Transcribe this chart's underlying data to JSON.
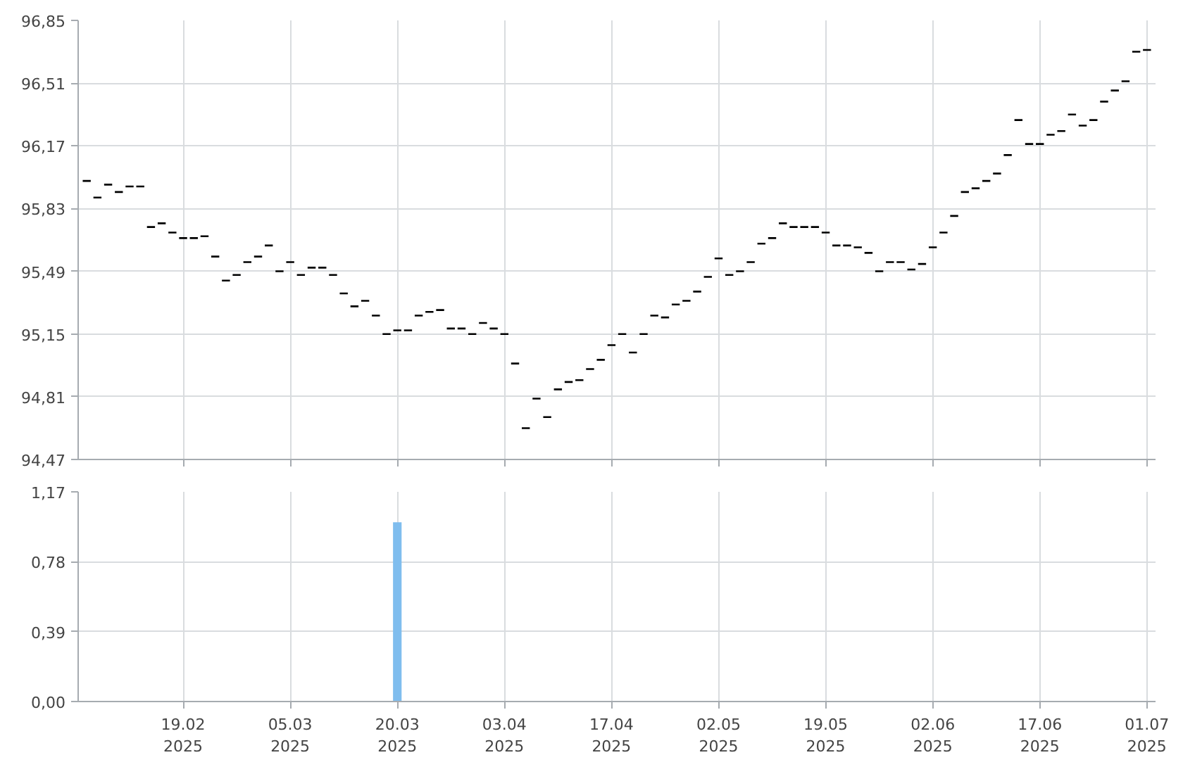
{
  "chart_data": [
    {
      "type": "candlestick",
      "color": "#000000",
      "grid": true,
      "tick_labels": "y",
      "categories": [
        null,
        null,
        null,
        null,
        null,
        null,
        null,
        null,
        null,
        null,
        null,
        null,
        null,
        null,
        null,
        null,
        null,
        null,
        null,
        null,
        null,
        null,
        null,
        null,
        null,
        null,
        null,
        null,
        null,
        null,
        null,
        null,
        null,
        null,
        null,
        null,
        null,
        null,
        null,
        null,
        null,
        null,
        null,
        null,
        null,
        null,
        null,
        null,
        null,
        null,
        null,
        null,
        null,
        null,
        null,
        null,
        null,
        null,
        null,
        null,
        null,
        null,
        null,
        null,
        null,
        null,
        null,
        null,
        null,
        null,
        null,
        null,
        null,
        null,
        null,
        null,
        null,
        null,
        null,
        null,
        null,
        null,
        null,
        null,
        null,
        null,
        null,
        null,
        null,
        null,
        null,
        null,
        null,
        null,
        null,
        null,
        null,
        null,
        null,
        null
      ],
      "ohlc": [
        [
          95.98,
          95.98,
          95.98,
          95.98
        ],
        [
          95.89,
          95.89,
          95.89,
          95.89
        ],
        [
          95.96,
          95.96,
          95.96,
          95.96
        ],
        [
          95.92,
          95.92,
          95.92,
          95.92
        ],
        [
          95.95,
          95.95,
          95.95,
          95.95
        ],
        [
          95.95,
          95.95,
          95.95,
          95.95
        ],
        [
          95.73,
          95.73,
          95.73,
          95.73
        ],
        [
          95.75,
          95.75,
          95.75,
          95.75
        ],
        [
          95.7,
          95.7,
          95.7,
          95.7
        ],
        [
          95.67,
          95.67,
          95.67,
          95.67
        ],
        [
          95.67,
          95.67,
          95.67,
          95.67
        ],
        [
          95.68,
          95.68,
          95.68,
          95.68
        ],
        [
          95.57,
          95.57,
          95.57,
          95.57
        ],
        [
          95.44,
          95.44,
          95.44,
          95.44
        ],
        [
          95.47,
          95.47,
          95.47,
          95.47
        ],
        [
          95.54,
          95.54,
          95.54,
          95.54
        ],
        [
          95.57,
          95.57,
          95.57,
          95.57
        ],
        [
          95.63,
          95.63,
          95.63,
          95.63
        ],
        [
          95.49,
          95.49,
          95.49,
          95.49
        ],
        [
          95.54,
          95.54,
          95.54,
          95.54
        ],
        [
          95.47,
          95.47,
          95.47,
          95.47
        ],
        [
          95.51,
          95.51,
          95.51,
          95.51
        ],
        [
          95.51,
          95.51,
          95.51,
          95.51
        ],
        [
          95.47,
          95.47,
          95.47,
          95.47
        ],
        [
          95.37,
          95.37,
          95.37,
          95.37
        ],
        [
          95.3,
          95.3,
          95.3,
          95.3
        ],
        [
          95.33,
          95.33,
          95.33,
          95.33
        ],
        [
          95.25,
          95.25,
          95.25,
          95.25
        ],
        [
          95.15,
          95.15,
          95.15,
          95.15
        ],
        [
          95.17,
          95.17,
          95.17,
          95.17
        ],
        [
          95.17,
          95.17,
          95.17,
          95.17
        ],
        [
          95.25,
          95.25,
          95.25,
          95.25
        ],
        [
          95.27,
          95.27,
          95.27,
          95.27
        ],
        [
          95.28,
          95.28,
          95.28,
          95.28
        ],
        [
          95.18,
          95.18,
          95.18,
          95.18
        ],
        [
          95.18,
          95.18,
          95.18,
          95.18
        ],
        [
          95.15,
          95.15,
          95.15,
          95.15
        ],
        [
          95.21,
          95.21,
          95.21,
          95.21
        ],
        [
          95.18,
          95.18,
          95.18,
          95.18
        ],
        [
          95.15,
          95.15,
          95.15,
          95.15
        ],
        [
          94.99,
          94.99,
          94.99,
          94.99
        ],
        [
          94.64,
          94.64,
          94.64,
          94.64
        ],
        [
          94.8,
          94.8,
          94.8,
          94.8
        ],
        [
          94.7,
          94.7,
          94.7,
          94.7
        ],
        [
          94.85,
          94.85,
          94.85,
          94.85
        ],
        [
          94.89,
          94.89,
          94.89,
          94.89
        ],
        [
          94.9,
          94.9,
          94.9,
          94.9
        ],
        [
          94.96,
          94.96,
          94.96,
          94.96
        ],
        [
          95.01,
          95.01,
          95.01,
          95.01
        ],
        [
          95.09,
          95.09,
          95.09,
          95.09
        ],
        [
          95.15,
          95.15,
          95.15,
          95.15
        ],
        [
          95.05,
          95.05,
          95.05,
          95.05
        ],
        [
          95.15,
          95.15,
          95.15,
          95.15
        ],
        [
          95.25,
          95.25,
          95.25,
          95.25
        ],
        [
          95.24,
          95.24,
          95.24,
          95.24
        ],
        [
          95.31,
          95.31,
          95.31,
          95.31
        ],
        [
          95.33,
          95.33,
          95.33,
          95.33
        ],
        [
          95.38,
          95.38,
          95.38,
          95.38
        ],
        [
          95.46,
          95.46,
          95.46,
          95.46
        ],
        [
          95.56,
          95.56,
          95.56,
          95.56
        ],
        [
          95.47,
          95.47,
          95.47,
          95.47
        ],
        [
          95.49,
          95.49,
          95.49,
          95.49
        ],
        [
          95.54,
          95.54,
          95.54,
          95.54
        ],
        [
          95.64,
          95.64,
          95.64,
          95.64
        ],
        [
          95.67,
          95.67,
          95.67,
          95.67
        ],
        [
          95.75,
          95.75,
          95.75,
          95.75
        ],
        [
          95.73,
          95.73,
          95.73,
          95.73
        ],
        [
          95.73,
          95.73,
          95.73,
          95.73
        ],
        [
          95.73,
          95.73,
          95.73,
          95.73
        ],
        [
          95.7,
          95.7,
          95.7,
          95.7
        ],
        [
          95.63,
          95.63,
          95.63,
          95.63
        ],
        [
          95.63,
          95.63,
          95.63,
          95.63
        ],
        [
          95.62,
          95.62,
          95.62,
          95.62
        ],
        [
          95.59,
          95.59,
          95.59,
          95.59
        ],
        [
          95.49,
          95.49,
          95.49,
          95.49
        ],
        [
          95.54,
          95.54,
          95.54,
          95.54
        ],
        [
          95.54,
          95.54,
          95.54,
          95.54
        ],
        [
          95.5,
          95.5,
          95.5,
          95.5
        ],
        [
          95.53,
          95.53,
          95.53,
          95.53
        ],
        [
          95.62,
          95.62,
          95.62,
          95.62
        ],
        [
          95.7,
          95.7,
          95.7,
          95.7
        ],
        [
          95.79,
          95.79,
          95.79,
          95.79
        ],
        [
          95.92,
          95.92,
          95.92,
          95.92
        ],
        [
          95.94,
          95.94,
          95.94,
          95.94
        ],
        [
          95.98,
          95.98,
          95.98,
          95.98
        ],
        [
          96.02,
          96.02,
          96.02,
          96.02
        ],
        [
          96.12,
          96.12,
          96.12,
          96.12
        ],
        [
          96.31,
          96.31,
          96.31,
          96.31
        ],
        [
          96.18,
          96.18,
          96.18,
          96.18
        ],
        [
          96.18,
          96.18,
          96.18,
          96.18
        ],
        [
          96.23,
          96.23,
          96.23,
          96.23
        ],
        [
          96.25,
          96.25,
          96.25,
          96.25
        ],
        [
          96.34,
          96.34,
          96.34,
          96.34
        ],
        [
          96.28,
          96.28,
          96.28,
          96.28
        ],
        [
          96.31,
          96.31,
          96.31,
          96.31
        ],
        [
          96.41,
          96.41,
          96.41,
          96.41
        ],
        [
          96.47,
          96.47,
          96.47,
          96.47
        ],
        [
          96.52,
          96.52,
          96.52,
          96.52
        ],
        [
          96.68,
          96.68,
          96.68,
          96.68
        ],
        [
          96.69,
          96.69,
          96.69,
          96.69
        ]
      ],
      "ylim": [
        94.47,
        96.85
      ],
      "yticks": [
        {
          "value": 94.47,
          "label": "94,47"
        },
        {
          "value": 94.81,
          "label": "94,81"
        },
        {
          "value": 95.15,
          "label": "95,15"
        },
        {
          "value": 95.49,
          "label": "95,49"
        },
        {
          "value": 95.83,
          "label": "95,83"
        },
        {
          "value": 96.17,
          "label": "96,17"
        },
        {
          "value": 96.51,
          "label": "96,51"
        },
        {
          "value": 96.85,
          "label": "96,85"
        }
      ]
    },
    {
      "type": "bar",
      "color": "#7fbdee",
      "grid": true,
      "categories": [
        null,
        null,
        null,
        null,
        null,
        null,
        null,
        null,
        null,
        "19.02\n2025",
        null,
        null,
        null,
        null,
        null,
        null,
        null,
        null,
        null,
        "05.03\n2025",
        null,
        null,
        null,
        null,
        null,
        null,
        null,
        null,
        null,
        "20.03\n2025",
        null,
        null,
        null,
        null,
        null,
        null,
        null,
        null,
        null,
        "03.04\n2025",
        null,
        null,
        null,
        null,
        null,
        null,
        null,
        null,
        null,
        "17.04\n2025",
        null,
        null,
        null,
        null,
        null,
        null,
        null,
        null,
        null,
        "02.05\n2025",
        null,
        null,
        null,
        null,
        null,
        null,
        null,
        null,
        null,
        "19.05\n2025",
        null,
        null,
        null,
        null,
        null,
        null,
        null,
        null,
        null,
        "02.06\n2025",
        null,
        null,
        null,
        null,
        null,
        null,
        null,
        null,
        null,
        "17.06\n2025",
        null,
        null,
        null,
        null,
        null,
        null,
        null,
        null,
        null,
        "01.07\n2025"
      ],
      "values": [
        null,
        null,
        null,
        null,
        null,
        null,
        null,
        null,
        null,
        null,
        null,
        null,
        null,
        null,
        null,
        null,
        null,
        null,
        null,
        null,
        null,
        null,
        null,
        null,
        null,
        null,
        null,
        null,
        null,
        1.0,
        null,
        null,
        null,
        null,
        null,
        null,
        null,
        null,
        null,
        null,
        null,
        null,
        null,
        null,
        null,
        null,
        null,
        null,
        null,
        null,
        null,
        null,
        null,
        null,
        null,
        null,
        null,
        null,
        null,
        null,
        null,
        null,
        null,
        null,
        null,
        null,
        null,
        null,
        null,
        null,
        null,
        null,
        null,
        null,
        null,
        null,
        null,
        null,
        null,
        null,
        null,
        null,
        null,
        null,
        null,
        null,
        null,
        null,
        null,
        null,
        null,
        null,
        null,
        null,
        null,
        null,
        null,
        null,
        null,
        null
      ],
      "ylim": [
        0,
        1.17
      ],
      "yticks": [
        {
          "value": 0,
          "label": "0,00"
        },
        {
          "value": 0.39,
          "label": "0,39"
        },
        {
          "value": 0.78,
          "label": "0,78"
        },
        {
          "value": 1.17,
          "label": "1,17"
        }
      ]
    }
  ]
}
